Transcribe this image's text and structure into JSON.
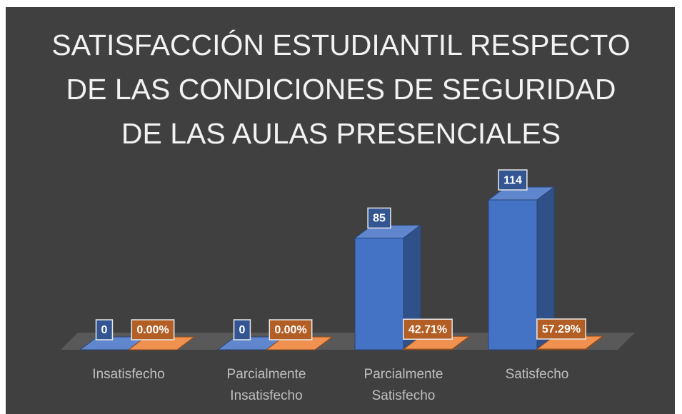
{
  "chart_data": {
    "type": "bar3d",
    "title": "SATISFACCIÓN ESTUDIANTIL RESPECTO DE LAS CONDICIONES DE SEGURIDAD DE LAS AULAS PRESENCIALES",
    "categories": [
      "Insatisfecho",
      "Parcialmente Insatisfecho",
      "Parcialmente Satisfecho",
      "Satisfecho"
    ],
    "series": [
      {
        "color": "#4472c4",
        "values": [
          0,
          0,
          85,
          114
        ]
      },
      {
        "color": "#ed7d31",
        "values": [
          0,
          0,
          0.4271,
          0.5729
        ],
        "value_labels": [
          "0.00%",
          "0.00%",
          "42.71%",
          "57.29%"
        ]
      }
    ],
    "ylim": [
      0,
      120
    ]
  }
}
